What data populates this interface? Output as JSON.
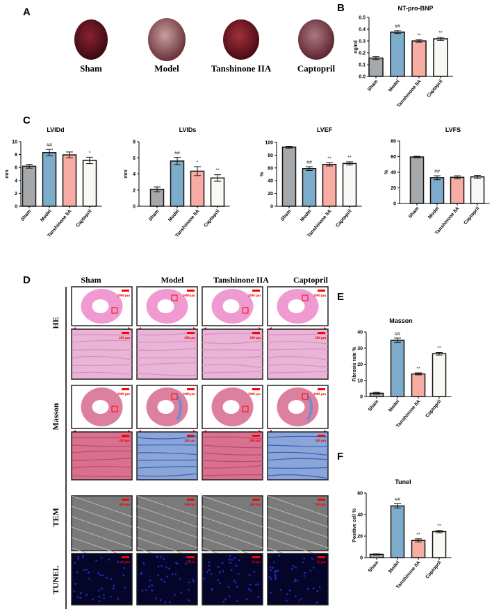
{
  "panels": {
    "a": "A",
    "b": "B",
    "c": "C",
    "d": "D",
    "e": "E",
    "f": "F"
  },
  "groups": [
    "Sham",
    "Model",
    "Tanshinone IIA",
    "Captopril"
  ],
  "colors": {
    "Sham": "#a6a9ac",
    "Model": "#7eaccb",
    "Tanshinone IIA": "#f8ada4",
    "Captopril": "#f8f8f5",
    "scale_bar": "#ff0000"
  },
  "panel_d": {
    "rows": [
      "HE",
      "Masson",
      "TEM",
      "TUNEL"
    ],
    "scale_labels": {
      "overview": "2000 μm",
      "detail": "200 μm",
      "tem": "500 nm",
      "tunel": "50 μm"
    }
  },
  "chart_data": [
    {
      "type": "bar",
      "title": "NT-pro-BNP",
      "ylabel": "ng/ml",
      "categories": [
        "Sham",
        "Model",
        "Tanshinone IIA",
        "Captopril"
      ],
      "values": [
        0.155,
        0.375,
        0.3,
        0.318
      ],
      "errors": [
        0.012,
        0.014,
        0.012,
        0.014
      ],
      "annotations": [
        "",
        "##",
        "**",
        "**"
      ],
      "ylim": [
        0,
        0.5
      ],
      "yticks": [
        "0.0",
        "0.1",
        "0.2",
        "0.3",
        "0.4",
        "0.5"
      ],
      "xlabels_shown": true
    },
    {
      "type": "bar",
      "title": "LVIDd",
      "ylabel": "mm",
      "categories": [
        "Sham",
        "Model",
        "Tanshinone IIA",
        "Captopril"
      ],
      "values": [
        6.2,
        8.3,
        7.95,
        7.1
      ],
      "errors": [
        0.3,
        0.5,
        0.45,
        0.5
      ],
      "annotations": [
        "",
        "##",
        "",
        "*"
      ],
      "ylim": [
        0,
        10
      ],
      "yticks": [
        "0",
        "2",
        "4",
        "6",
        "8",
        "10"
      ],
      "xlabels_shown": true
    },
    {
      "type": "bar",
      "title": "LVIDs",
      "ylabel": "mm",
      "categories": [
        "Sham",
        "Model",
        "Tanshinone IIA",
        "Captopril"
      ],
      "values": [
        2.1,
        5.6,
        4.35,
        3.5
      ],
      "errors": [
        0.3,
        0.45,
        0.55,
        0.4
      ],
      "annotations": [
        "",
        "##",
        "*",
        "**"
      ],
      "ylim": [
        0,
        8
      ],
      "yticks": [
        "0",
        "2",
        "4",
        "6",
        "8"
      ],
      "xlabels_shown": true
    },
    {
      "type": "bar",
      "title": "LVEF",
      "ylabel": "%",
      "categories": [
        "Sham",
        "Model",
        "Tanshinone IIA",
        "Captopril"
      ],
      "values": [
        92.5,
        59,
        65.5,
        67
      ],
      "errors": [
        1.5,
        3,
        2.5,
        2.5
      ],
      "annotations": [
        "",
        "##",
        "**",
        "**"
      ],
      "ylim": [
        0,
        100
      ],
      "yticks": [
        "0",
        "20",
        "40",
        "60",
        "80",
        "100"
      ],
      "xlabels_shown": true
    },
    {
      "type": "bar",
      "title": "LVFS",
      "ylabel": "%",
      "categories": [
        "Sham",
        "Model",
        "Tanshinone IIA",
        "Captopril"
      ],
      "values": [
        59.5,
        33,
        33.5,
        34
      ],
      "errors": [
        1,
        2.5,
        2,
        2
      ],
      "annotations": [
        "",
        "##",
        "",
        ""
      ],
      "ylim": [
        0,
        80
      ],
      "yticks": [
        "0",
        "20",
        "40",
        "60",
        "80"
      ],
      "xlabels_shown": true
    },
    {
      "type": "bar",
      "title": "Masson",
      "ylabel": "Fibrosis rate %",
      "categories": [
        "Sham",
        "Model",
        "Tanshinone IIA",
        "Captopril"
      ],
      "values": [
        2,
        34.8,
        14,
        26.5
      ],
      "errors": [
        0.6,
        1.4,
        0.6,
        0.8
      ],
      "annotations": [
        "",
        "##",
        "**",
        "**"
      ],
      "ylim": [
        0,
        40
      ],
      "yticks": [
        "0",
        "10",
        "20",
        "30",
        "40"
      ],
      "xlabels_shown": true
    },
    {
      "type": "bar",
      "title": "Tunel",
      "ylabel": "Positive cell %",
      "categories": [
        "Sham",
        "Model",
        "Tanshinone IIA",
        "Captopril"
      ],
      "values": [
        3,
        48,
        16,
        24.2
      ],
      "errors": [
        0.5,
        2,
        1.5,
        1.2
      ],
      "annotations": [
        "",
        "##",
        "**",
        "**"
      ],
      "ylim": [
        0,
        60
      ],
      "yticks": [
        "0",
        "20",
        "40",
        "60"
      ],
      "xlabels_shown": true
    }
  ]
}
